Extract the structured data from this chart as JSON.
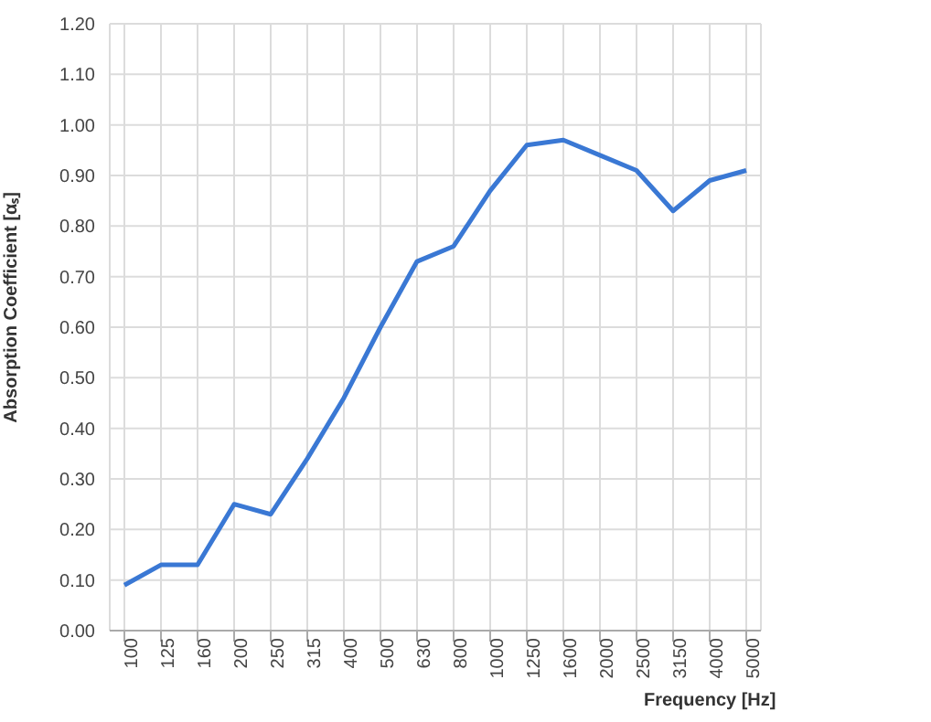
{
  "chart_data": {
    "type": "line",
    "xlabel": "Frequency [Hz]",
    "ylabel": "Absorption Coefficient  [αₛ]",
    "categories": [
      "100",
      "125",
      "160",
      "200",
      "250",
      "315",
      "400",
      "500",
      "630",
      "800",
      "1000",
      "1250",
      "1600",
      "2000",
      "2500",
      "3150",
      "4000",
      "5000"
    ],
    "series": [
      {
        "color": "#3a78d4",
        "values": [
          0.09,
          0.13,
          0.13,
          0.25,
          0.23,
          0.34,
          0.46,
          0.6,
          0.73,
          0.76,
          0.87,
          0.96,
          0.97,
          0.94,
          0.91,
          0.83,
          0.89,
          0.91
        ]
      }
    ],
    "ylim": [
      0,
      1.2
    ],
    "yticks": [
      {
        "value": 0,
        "label": "0.00"
      },
      {
        "value": 0.1,
        "label": "0.10"
      },
      {
        "value": 0.2,
        "label": "0.20"
      },
      {
        "value": 0.3,
        "label": "0.30"
      },
      {
        "value": 0.4,
        "label": "0.40"
      },
      {
        "value": 0.5,
        "label": "0.50"
      },
      {
        "value": 0.6,
        "label": "0.60"
      },
      {
        "value": 0.7,
        "label": "0.70"
      },
      {
        "value": 0.8,
        "label": "0.80"
      },
      {
        "value": 0.9,
        "label": "0.90"
      },
      {
        "value": 1.0,
        "label": "1.00"
      },
      {
        "value": 1.1,
        "label": "1.10"
      },
      {
        "value": 1.2,
        "label": "1.20"
      }
    ],
    "grid": true,
    "marker": "none",
    "line_style": "solid"
  }
}
